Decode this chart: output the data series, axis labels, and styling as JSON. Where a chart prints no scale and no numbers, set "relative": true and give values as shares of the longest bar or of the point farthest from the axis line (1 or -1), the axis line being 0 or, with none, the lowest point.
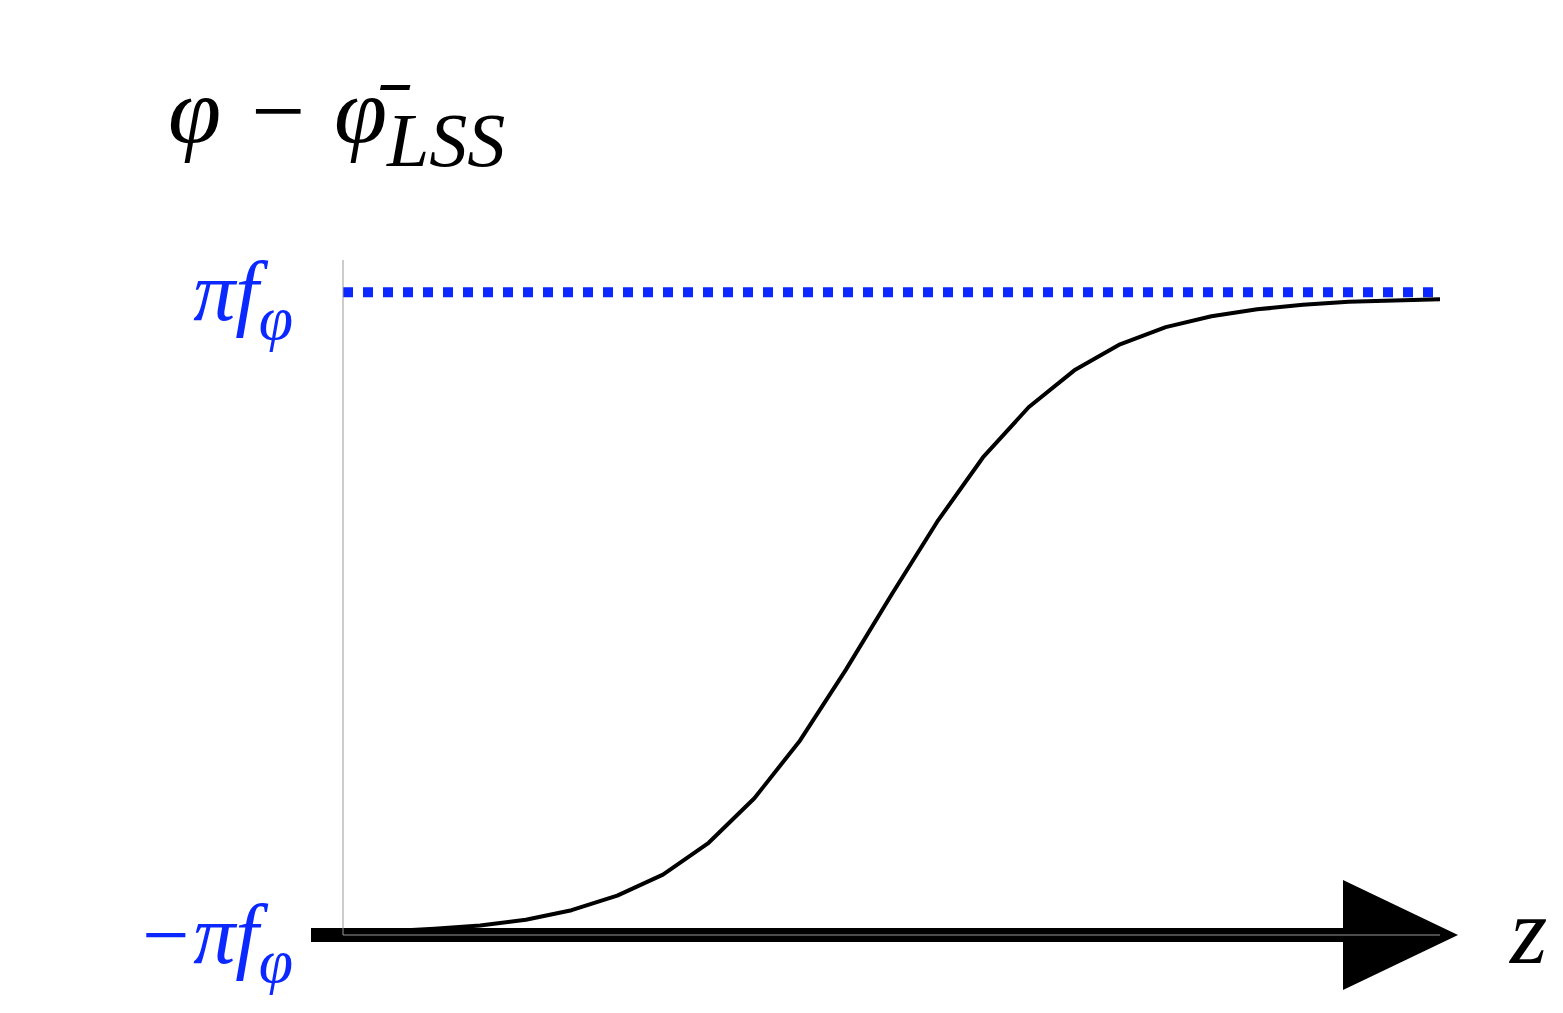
{
  "chart_data": {
    "type": "line",
    "title": "φ − φ̄$_{LSS}$",
    "xlabel": "z",
    "relative": true,
    "categories": [
      null,
      null,
      null,
      null,
      null,
      null,
      null,
      null,
      null,
      null,
      null,
      null,
      null,
      null,
      null,
      null,
      null,
      null,
      null,
      null,
      null,
      null,
      null,
      null,
      null
    ],
    "series": [
      {
        "color": "#000000",
        "values": [
          0.004,
          0.006,
          0.01,
          0.015,
          0.024,
          0.039,
          0.062,
          0.095,
          0.145,
          0.215,
          0.306,
          0.417,
          0.535,
          0.65,
          0.751,
          0.83,
          0.888,
          0.929,
          0.956,
          0.973,
          0.984,
          0.991,
          0.996,
          0.998,
          1
        ]
      }
    ],
    "ref_lines": [
      {
        "axis": "y",
        "value": 1.011,
        "label": "πf$_{φ}$",
        "color": "#0a28ff",
        "line_style": "dotted"
      }
    ],
    "annotations": [
      "−πf$_{φ}$"
    ],
    "marker": "none",
    "line_style": "solid"
  }
}
